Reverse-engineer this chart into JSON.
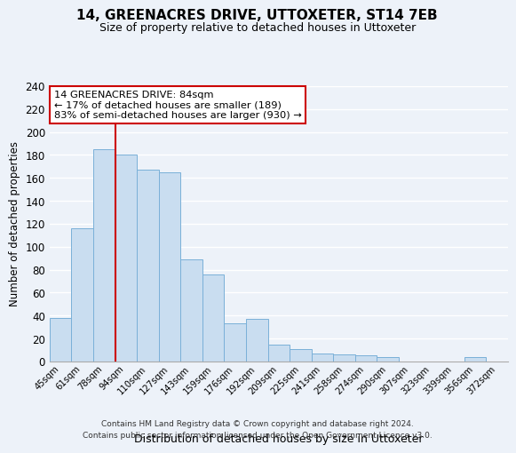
{
  "title": "14, GREENACRES DRIVE, UTTOXETER, ST14 7EB",
  "subtitle": "Size of property relative to detached houses in Uttoxeter",
  "xlabel": "Distribution of detached houses by size in Uttoxeter",
  "ylabel": "Number of detached properties",
  "bar_labels": [
    "45sqm",
    "61sqm",
    "78sqm",
    "94sqm",
    "110sqm",
    "127sqm",
    "143sqm",
    "159sqm",
    "176sqm",
    "192sqm",
    "209sqm",
    "225sqm",
    "241sqm",
    "258sqm",
    "274sqm",
    "290sqm",
    "307sqm",
    "323sqm",
    "339sqm",
    "356sqm",
    "372sqm"
  ],
  "bar_values": [
    38,
    116,
    185,
    180,
    167,
    165,
    89,
    76,
    33,
    37,
    15,
    11,
    7,
    6,
    5,
    4,
    0,
    0,
    0,
    4,
    0
  ],
  "bar_color": "#c9ddf0",
  "bar_edge_color": "#7ab0d8",
  "vline_x_index": 2,
  "vline_color": "#cc0000",
  "ylim": [
    0,
    240
  ],
  "yticks": [
    0,
    20,
    40,
    60,
    80,
    100,
    120,
    140,
    160,
    180,
    200,
    220,
    240
  ],
  "annotation_title": "14 GREENACRES DRIVE: 84sqm",
  "annotation_line1": "← 17% of detached houses are smaller (189)",
  "annotation_line2": "83% of semi-detached houses are larger (930) →",
  "annotation_box_facecolor": "white",
  "annotation_box_edgecolor": "#cc0000",
  "footer_line1": "Contains HM Land Registry data © Crown copyright and database right 2024.",
  "footer_line2": "Contains public sector information licensed under the Open Government Licence v3.0.",
  "background_color": "#edf2f9",
  "grid_color": "white"
}
